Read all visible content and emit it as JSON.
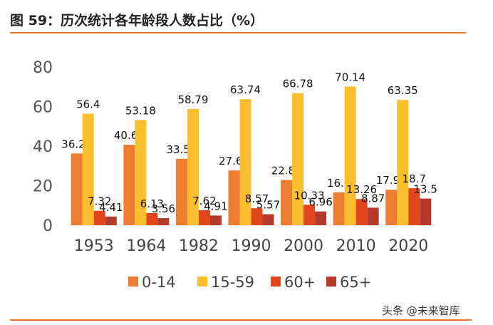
{
  "header": {
    "title": "图 59：历次统计各年龄段人数占比（%）"
  },
  "watermark": "头条 @未来智库",
  "chart_data": {
    "type": "bar",
    "title": "",
    "xlabel": "",
    "ylabel": "",
    "ylim": [
      0,
      80
    ],
    "yticks": [
      0,
      20,
      40,
      60,
      80
    ],
    "grid": false,
    "legend_position": "bottom",
    "categories": [
      "1953",
      "1964",
      "1982",
      "1990",
      "2000",
      "2010",
      "2020"
    ],
    "series": [
      {
        "name": "0-14",
        "color": "#ed7d31",
        "values": [
          36.28,
          40.69,
          33.59,
          27.69,
          22.89,
          16.6,
          17.95
        ],
        "labels": [
          "36.28",
          "40.69",
          "33.59",
          "27.69",
          "22.89",
          "16.6",
          "17.95"
        ]
      },
      {
        "name": "15-59",
        "color": "#fbbe2f",
        "values": [
          56.4,
          53.18,
          58.79,
          63.74,
          66.78,
          70.14,
          63.35
        ],
        "labels": [
          "56.4",
          "53.18",
          "58.79",
          "63.74",
          "66.78",
          "70.14",
          "63.35"
        ]
      },
      {
        "name": "60+",
        "color": "#e2461c",
        "values": [
          7.32,
          6.13,
          7.62,
          8.57,
          10.33,
          13.26,
          18.7
        ],
        "labels": [
          "7.32",
          "6.13",
          "7.62",
          "8.57",
          "10.33",
          "13.26",
          "18.7"
        ]
      },
      {
        "name": "65+",
        "color": "#b53a2c",
        "values": [
          4.41,
          3.56,
          4.91,
          5.57,
          6.96,
          8.87,
          13.5
        ],
        "labels": [
          "4.41",
          "3.56",
          "4.91",
          "5.57",
          "6.96",
          "8.87",
          "13.5"
        ]
      }
    ]
  }
}
